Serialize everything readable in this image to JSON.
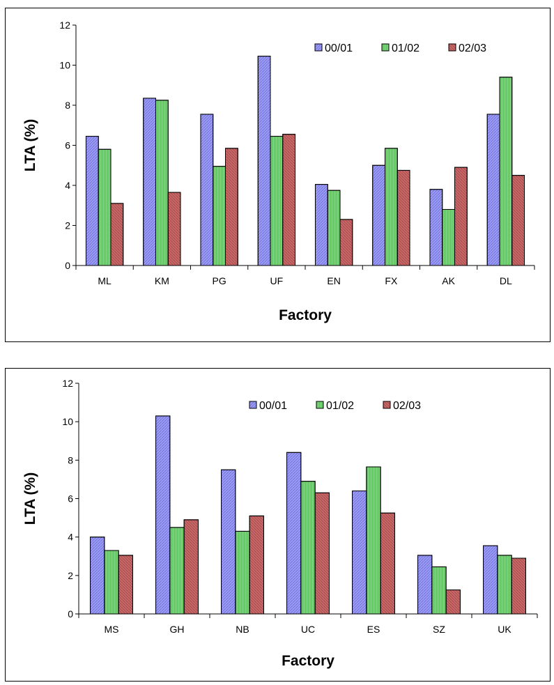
{
  "chart_data": [
    {
      "type": "bar",
      "categories": [
        "ML",
        "KM",
        "PG",
        "UF",
        "EN",
        "FX",
        "AK",
        "DL"
      ],
      "series": [
        {
          "name": "00/01",
          "color": "#9999ff",
          "values": [
            6.45,
            8.35,
            7.55,
            10.45,
            4.05,
            5.0,
            3.8,
            7.55
          ]
        },
        {
          "name": "01/02",
          "color": "#66cc66",
          "values": [
            5.8,
            8.25,
            4.95,
            6.45,
            3.75,
            5.85,
            2.8,
            9.4
          ]
        },
        {
          "name": "02/03",
          "color": "#cc6666",
          "values": [
            3.1,
            3.65,
            5.85,
            6.55,
            2.3,
            4.75,
            4.9,
            4.5
          ]
        }
      ],
      "xlabel": "Factory",
      "ylabel": "LTA (%)",
      "ylim": [
        0,
        12
      ],
      "yticks": [
        "0",
        "2",
        "4",
        "6",
        "8",
        "10",
        "12"
      ],
      "legend_position": "top-right",
      "grid": false
    },
    {
      "type": "bar",
      "categories": [
        "MS",
        "GH",
        "NB",
        "UC",
        "ES",
        "SZ",
        "UK"
      ],
      "series": [
        {
          "name": "00/01",
          "color": "#9999ff",
          "values": [
            4.0,
            10.3,
            7.5,
            8.4,
            6.4,
            3.05,
            3.55
          ]
        },
        {
          "name": "01/02",
          "color": "#66cc66",
          "values": [
            3.3,
            4.5,
            4.3,
            6.9,
            7.65,
            2.45,
            3.05
          ]
        },
        {
          "name": "02/03",
          "color": "#cc6666",
          "values": [
            3.05,
            4.9,
            5.1,
            6.3,
            5.25,
            1.25,
            2.9
          ]
        }
      ],
      "xlabel": "Factory",
      "ylabel": "LTA (%)",
      "ylim": [
        0,
        12
      ],
      "yticks": [
        "0",
        "2",
        "4",
        "6",
        "8",
        "10",
        "12"
      ],
      "legend_position": "top-center",
      "grid": false
    }
  ]
}
